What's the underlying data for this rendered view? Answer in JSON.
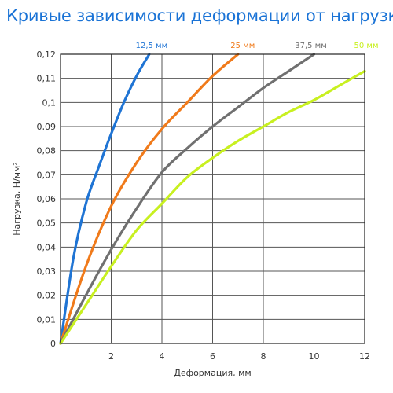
{
  "chart_data": {
    "type": "line",
    "title": "Кривые зависимости деформации от нагрузки",
    "xlabel": "Деформация, мм",
    "ylabel": "Нагрузка, Н/мм²",
    "xlim": [
      0,
      12
    ],
    "ylim": [
      0,
      0.12
    ],
    "grid": true,
    "x_ticks": [
      "2",
      "4",
      "6",
      "8",
      "10",
      "12"
    ],
    "y_ticks": [
      "0",
      "0,01",
      "0,02",
      "0,03",
      "0,04",
      "0,05",
      "0,06",
      "0,07",
      "0,08",
      "0,09",
      "0,1",
      "0,11",
      "0,12"
    ],
    "series": [
      {
        "name": "12,5 мм",
        "color": "#1f74d4",
        "x": [
          0,
          0.5,
          1.0,
          1.5,
          2.0,
          2.5,
          3.0,
          3.5
        ],
        "y": [
          0,
          0.035,
          0.058,
          0.073,
          0.087,
          0.1,
          0.111,
          0.12
        ]
      },
      {
        "name": "25 мм",
        "color": "#f07a1a",
        "x": [
          0,
          1.0,
          2.0,
          3.0,
          4.0,
          5.0,
          6.0,
          7.0
        ],
        "y": [
          0,
          0.032,
          0.057,
          0.075,
          0.089,
          0.1,
          0.111,
          0.12
        ]
      },
      {
        "name": "37,5 мм",
        "color": "#707070",
        "x": [
          0,
          1.0,
          2.0,
          3.0,
          4.0,
          5.0,
          6.0,
          7.0,
          8.0,
          9.0,
          10.0
        ],
        "y": [
          0,
          0.02,
          0.039,
          0.056,
          0.071,
          0.081,
          0.09,
          0.098,
          0.106,
          0.113,
          0.12
        ]
      },
      {
        "name": "50 мм",
        "color": "#c8f020",
        "x": [
          0,
          1.0,
          2.0,
          3.0,
          4.0,
          5.0,
          6.0,
          7.0,
          8.0,
          9.0,
          10.0,
          11.0,
          12.0
        ],
        "y": [
          0,
          0.016,
          0.032,
          0.047,
          0.058,
          0.069,
          0.077,
          0.084,
          0.09,
          0.096,
          0.101,
          0.107,
          0.113
        ]
      }
    ]
  }
}
